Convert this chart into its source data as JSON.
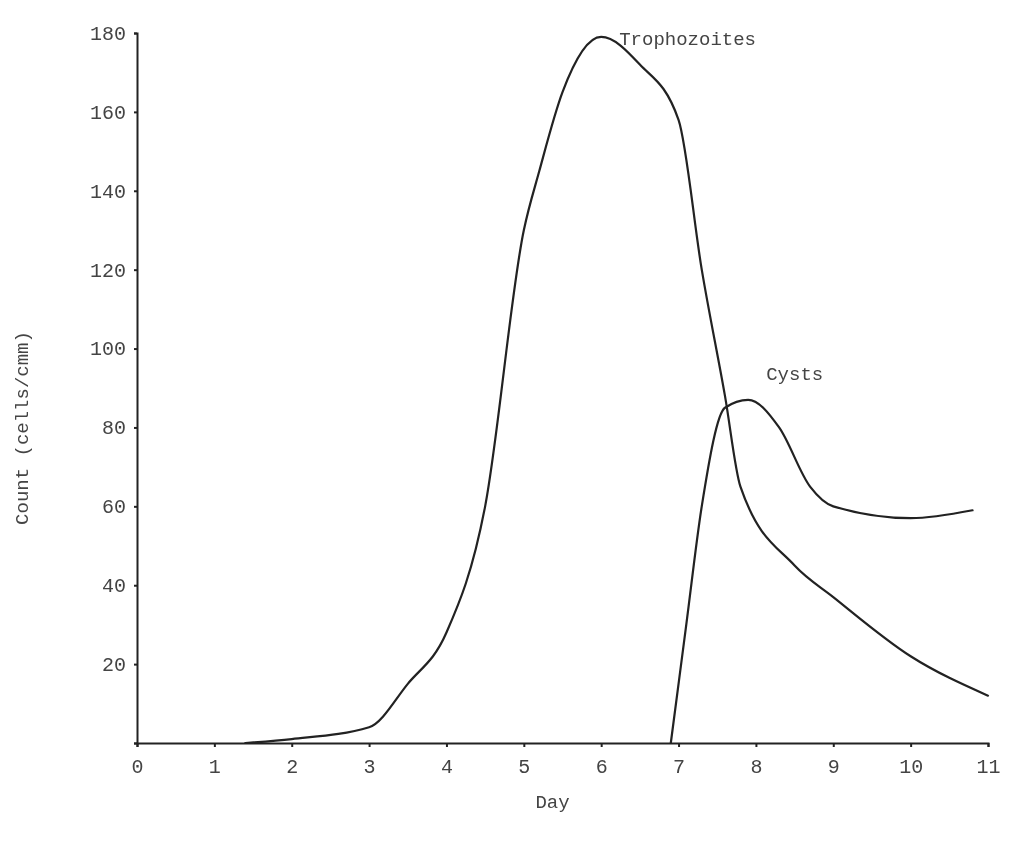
{
  "chart_data": {
    "type": "line",
    "xlabel": "Day",
    "ylabel": "Count (cells/cmm)",
    "xlim": [
      0,
      11
    ],
    "xticks": [
      0,
      1,
      2,
      3,
      4,
      5,
      6,
      7,
      8,
      9,
      10,
      11
    ],
    "ylim": [
      0,
      180
    ],
    "yticks": [
      {
        "value": 0,
        "label": null
      },
      20,
      40,
      60,
      80,
      100,
      120,
      140,
      160,
      180
    ],
    "grid": false,
    "legend": false,
    "series": [
      {
        "name": "Trophozoites",
        "color": "#222222",
        "x": [
          1.4,
          2,
          3,
          3.5,
          4,
          4.5,
          5,
          5.2,
          5.5,
          6,
          6.5,
          7,
          7.3,
          7.6,
          7.8,
          8.5,
          9,
          10,
          11
        ],
        "values": [
          0,
          1,
          4,
          15,
          28,
          60,
          130,
          145,
          165,
          179,
          172,
          158,
          120,
          88,
          65,
          45,
          37,
          22,
          12
        ]
      },
      {
        "name": "Cysts",
        "color": "#222222",
        "x": [
          6.9,
          7.1,
          7.3,
          7.6,
          7.9,
          8.3,
          8.7,
          9,
          10,
          10.8
        ],
        "values": [
          0,
          30,
          60,
          85,
          87,
          80,
          65,
          60,
          57,
          59
        ]
      }
    ]
  }
}
